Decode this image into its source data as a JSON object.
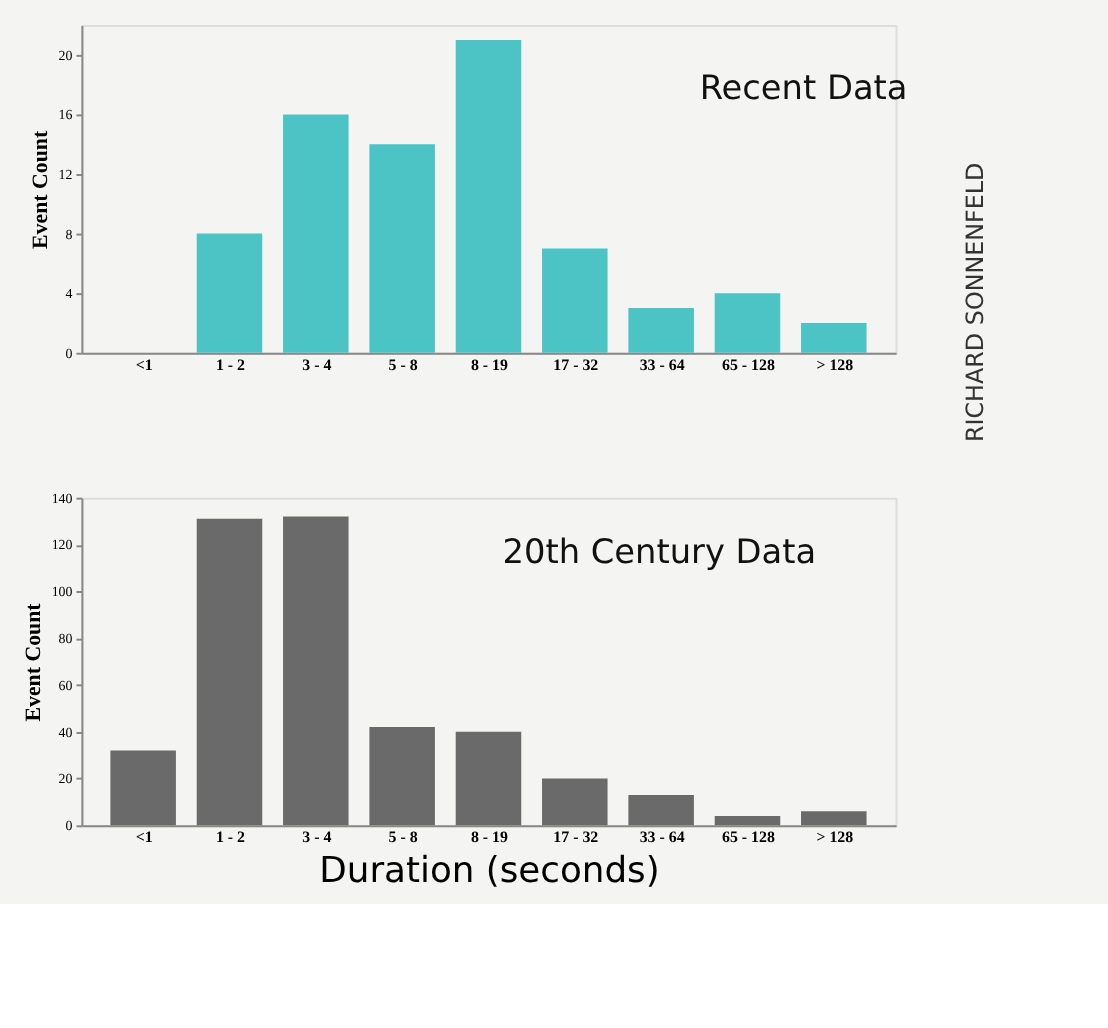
{
  "chart_data": [
    {
      "type": "bar",
      "title": "Recent Data",
      "ylabel": "Event Count",
      "categories": [
        "<1",
        "1 - 2",
        "3 - 4",
        "5 - 8",
        "8 - 19",
        "17 - 32",
        "33 - 64",
        "65 - 128",
        "> 128"
      ],
      "values": [
        0,
        8,
        16,
        14,
        21,
        7,
        3,
        4,
        2
      ],
      "color": "#4cc4c6",
      "ylim": [
        0,
        22
      ],
      "yticks": [
        0,
        4,
        8,
        12,
        16,
        20
      ],
      "grid": false,
      "annotations": [
        "RICHARD SONNENFELD"
      ]
    },
    {
      "type": "bar",
      "title": "20th Century Data",
      "ylabel": "Event Count",
      "xlabel": "Duration (seconds)",
      "categories": [
        "<1",
        "1 - 2",
        "3 - 4",
        "5 - 8",
        "8 - 19",
        "17 - 32",
        "33 - 64",
        "65 - 128",
        "> 128"
      ],
      "values": [
        32,
        131,
        132,
        42,
        40,
        20,
        13,
        4,
        6
      ],
      "color": "#6a6a6a",
      "ylim": [
        0,
        140
      ],
      "yticks": [
        0,
        20,
        40,
        60,
        80,
        100,
        120,
        140
      ],
      "grid": false
    }
  ]
}
